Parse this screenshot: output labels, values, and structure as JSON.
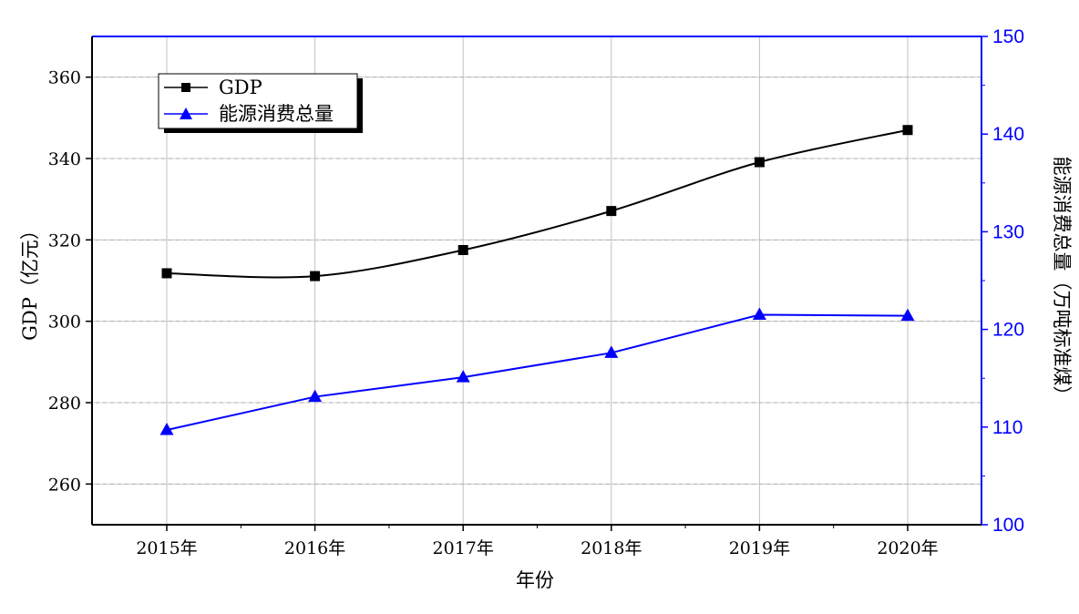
{
  "chart_data": {
    "type": "line",
    "categories": [
      "2015年",
      "2016年",
      "2017年",
      "2018年",
      "2019年",
      "2020年"
    ],
    "series": [
      {
        "name": "GDP",
        "axis": "left",
        "color": "#000000",
        "marker": "square",
        "smooth": true,
        "values": [
          311.8,
          311.1,
          317.5,
          327.1,
          339.1,
          347.0
        ]
      },
      {
        "name": "能源消费总量",
        "axis": "right",
        "color": "#0000ff",
        "marker": "triangle",
        "smooth": false,
        "values": [
          109.7,
          113.1,
          115.1,
          117.6,
          121.5,
          121.4
        ]
      }
    ],
    "xlabel": "年份",
    "ylabel": "GDP（亿元）",
    "ylabel_right": "能源消费总量（万吨标准煤）",
    "ylim": [
      250,
      370
    ],
    "ylim_right": [
      100,
      150
    ],
    "yticks": [
      260,
      280,
      300,
      320,
      340,
      360
    ],
    "yticks_right": [
      100,
      110,
      120,
      130,
      140,
      150
    ],
    "grid": true,
    "legend_position": "top-left"
  }
}
